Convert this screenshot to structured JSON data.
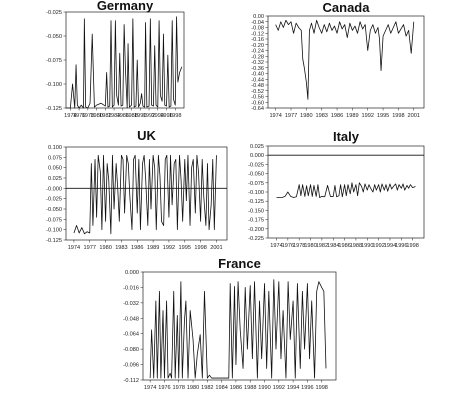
{
  "chart_data": [
    {
      "type": "line",
      "title": "Germany",
      "ylim": [
        -0.125,
        -0.025
      ],
      "yticks": [
        -0.025,
        -0.05,
        -0.075,
        -0.1,
        -0.125
      ],
      "ytick_labels": [
        "-0.025",
        "-0.050",
        "-0.075",
        "-0.100",
        "-0.125"
      ],
      "xlim": [
        1973,
        2000
      ],
      "xticks": [
        1974,
        1976,
        1978,
        1980,
        1982,
        1984,
        1986,
        1988,
        1990,
        1992,
        1994,
        1996,
        1998
      ],
      "xtick_labels": [
        "1974",
        "1976",
        "1978",
        "1980",
        "1982",
        "1984",
        "1986",
        "1988",
        "1990",
        "1992",
        "1994",
        "1996",
        "1998"
      ],
      "hline": null,
      "series": [
        {
          "x": [
            1973.0,
            1974.0,
            1974.5,
            1975.0,
            1975.3,
            1975.6,
            1976.0,
            1976.5,
            1977.0,
            1977.2,
            1977.5,
            1978.0,
            1978.5,
            1979.0,
            1979.5,
            1980.0,
            1981.0,
            1982.0,
            1982.3,
            1982.6,
            1983.0,
            1983.3,
            1983.6,
            1984.0,
            1984.3,
            1984.6,
            1985.0,
            1985.3,
            1985.6,
            1986.0,
            1986.3,
            1986.6,
            1987.0,
            1987.2,
            1987.5,
            1988.0,
            1988.3,
            1988.6,
            1989.0,
            1989.3,
            1989.6,
            1990.0,
            1990.3,
            1990.6,
            1991.0,
            1991.2,
            1991.5,
            1992.0,
            1992.3,
            1992.6,
            1993.0,
            1993.3,
            1993.6,
            1994.0,
            1994.3,
            1994.6,
            1995.0,
            1995.3,
            1995.6,
            1996.0,
            1996.3,
            1996.6,
            1997.0,
            1997.3,
            1997.6,
            1998.0,
            1998.3,
            1998.6,
            1999.0,
            1999.5
          ],
          "values": [
            -0.125,
            -0.125,
            -0.1,
            -0.125,
            -0.08,
            -0.122,
            -0.125,
            -0.122,
            -0.125,
            -0.032,
            -0.124,
            -0.125,
            -0.12,
            -0.048,
            -0.124,
            -0.122,
            -0.12,
            -0.123,
            -0.088,
            -0.124,
            -0.123,
            -0.034,
            -0.124,
            -0.122,
            -0.034,
            -0.112,
            -0.122,
            -0.068,
            -0.123,
            -0.122,
            -0.038,
            -0.085,
            -0.125,
            -0.058,
            -0.124,
            -0.122,
            -0.032,
            -0.124,
            -0.123,
            -0.075,
            -0.124,
            -0.12,
            -0.11,
            -0.123,
            -0.124,
            -0.036,
            -0.124,
            -0.123,
            -0.032,
            -0.122,
            -0.123,
            -0.06,
            -0.122,
            -0.124,
            -0.034,
            -0.112,
            -0.118,
            -0.048,
            -0.122,
            -0.123,
            -0.07,
            -0.124,
            -0.123,
            -0.034,
            -0.116,
            -0.122,
            -0.03,
            -0.098,
            -0.088,
            -0.082
          ]
        }
      ]
    },
    {
      "type": "line",
      "title": "Canada",
      "ylim": [
        -0.64,
        0.0
      ],
      "yticks": [
        0.0,
        -0.04,
        -0.08,
        -0.12,
        -0.16,
        -0.2,
        -0.24,
        -0.28,
        -0.32,
        -0.36,
        -0.4,
        -0.44,
        -0.48,
        -0.52,
        -0.56,
        -0.6,
        -0.64
      ],
      "ytick_labels": [
        "0.00",
        "-0.04",
        "-0.08",
        "-0.12",
        "-0.16",
        "-0.20",
        "-0.24",
        "-0.28",
        "-0.32",
        "-0.36",
        "-0.40",
        "-0.44",
        "-0.48",
        "-0.52",
        "-0.56",
        "-0.60",
        "-0.64"
      ],
      "xlim": [
        1972.5,
        2003
      ],
      "xticks": [
        1974,
        1977,
        1980,
        1983,
        1986,
        1989,
        1992,
        1995,
        1998,
        2001
      ],
      "xtick_labels": [
        "1974",
        "1977",
        "1980",
        "1983",
        "1986",
        "1989",
        "1992",
        "1995",
        "1998",
        "2001"
      ],
      "hline": null,
      "series": [
        {
          "x": [
            1974.0,
            1974.5,
            1975.0,
            1975.5,
            1976.0,
            1976.5,
            1977.0,
            1977.5,
            1978.0,
            1978.5,
            1979.0,
            1979.3,
            1979.6,
            1980.0,
            1980.3,
            1980.6,
            1981.0,
            1981.5,
            1982.0,
            1982.5,
            1983.0,
            1983.5,
            1984.0,
            1984.5,
            1985.0,
            1985.5,
            1986.0,
            1986.5,
            1987.0,
            1987.5,
            1988.0,
            1988.5,
            1989.0,
            1989.5,
            1990.0,
            1990.5,
            1991.0,
            1991.5,
            1992.0,
            1992.5,
            1993.0,
            1993.5,
            1994.0,
            1994.3,
            1994.6,
            1995.0,
            1995.5,
            1996.0,
            1996.5,
            1997.0,
            1997.5,
            1998.0,
            1998.5,
            1999.0,
            1999.5,
            2000.0,
            2000.5,
            2001.0
          ],
          "values": [
            -0.06,
            -0.1,
            -0.04,
            -0.08,
            -0.03,
            -0.06,
            -0.04,
            -0.12,
            -0.05,
            -0.08,
            -0.1,
            -0.3,
            -0.36,
            -0.46,
            -0.58,
            -0.1,
            -0.05,
            -0.12,
            -0.03,
            -0.08,
            -0.12,
            -0.06,
            -0.11,
            -0.05,
            -0.1,
            -0.07,
            -0.12,
            -0.04,
            -0.09,
            -0.06,
            -0.15,
            -0.05,
            -0.1,
            -0.07,
            -0.12,
            -0.04,
            -0.09,
            -0.06,
            -0.24,
            -0.1,
            -0.06,
            -0.12,
            -0.08,
            -0.16,
            -0.38,
            -0.14,
            -0.1,
            -0.06,
            -0.12,
            -0.08,
            -0.04,
            -0.12,
            -0.09,
            -0.06,
            -0.14,
            -0.1,
            -0.26,
            -0.04
          ]
        }
      ]
    },
    {
      "type": "line",
      "title": "UK",
      "ylim": [
        -0.125,
        0.1
      ],
      "yticks": [
        0.1,
        0.075,
        0.05,
        0.025,
        0.0,
        -0.025,
        -0.05,
        -0.075,
        -0.1,
        -0.125
      ],
      "ytick_labels": [
        "0.100",
        "0.075",
        "0.050",
        "0.025",
        "-0.000",
        "-0.025",
        "-0.050",
        "-0.075",
        "-0.100",
        "-0.125"
      ],
      "xlim": [
        1972.5,
        2003
      ],
      "xticks": [
        1974,
        1977,
        1980,
        1983,
        1986,
        1989,
        1992,
        1995,
        1998,
        2001
      ],
      "xtick_labels": [
        "1974",
        "1977",
        "1980",
        "1983",
        "1986",
        "1989",
        "1992",
        "1995",
        "1998",
        "2001"
      ],
      "hline": 0.0,
      "series": [
        {
          "x": [
            1974.0,
            1974.5,
            1975.0,
            1975.5,
            1976.0,
            1976.5,
            1977.0,
            1977.3,
            1977.6,
            1978.0,
            1978.3,
            1978.6,
            1979.0,
            1979.3,
            1979.6,
            1980.0,
            1980.3,
            1980.6,
            1981.0,
            1981.3,
            1981.6,
            1982.0,
            1982.3,
            1982.6,
            1983.0,
            1983.3,
            1983.6,
            1984.0,
            1984.3,
            1984.6,
            1985.0,
            1985.3,
            1985.6,
            1986.0,
            1986.3,
            1986.6,
            1987.0,
            1987.3,
            1987.6,
            1988.0,
            1988.3,
            1988.6,
            1989.0,
            1989.3,
            1989.6,
            1990.0,
            1990.3,
            1990.6,
            1991.0,
            1991.3,
            1991.6,
            1992.0,
            1992.3,
            1992.6,
            1993.0,
            1993.3,
            1993.6,
            1994.0,
            1994.3,
            1994.6,
            1995.0,
            1995.3,
            1995.6,
            1996.0,
            1996.3,
            1996.6,
            1997.0,
            1997.3,
            1997.6,
            1998.0,
            1998.3,
            1998.6,
            1999.0,
            1999.3,
            1999.6,
            2000.0,
            2000.3,
            2000.6,
            2001.0
          ],
          "values": [
            -0.108,
            -0.09,
            -0.108,
            -0.095,
            -0.11,
            -0.105,
            -0.108,
            0.06,
            -0.09,
            0.07,
            -0.07,
            0.08,
            0.04,
            -0.1,
            0.08,
            -0.08,
            0.06,
            0.02,
            -0.11,
            0.08,
            -0.05,
            0.06,
            0.0,
            -0.08,
            0.08,
            0.07,
            -0.06,
            0.08,
            0.06,
            -0.02,
            -0.1,
            0.07,
            0.08,
            -0.06,
            0.07,
            -0.1,
            0.06,
            0.08,
            0.02,
            -0.09,
            0.07,
            -0.05,
            0.08,
            0.05,
            -0.1,
            0.08,
            0.03,
            -0.08,
            -0.09,
            0.07,
            0.08,
            -0.07,
            0.08,
            -0.04,
            0.06,
            0.07,
            -0.1,
            0.08,
            0.02,
            -0.08,
            0.07,
            -0.03,
            0.08,
            -0.09,
            0.05,
            0.07,
            -0.06,
            0.08,
            0.04,
            -0.08,
            0.07,
            -0.02,
            -0.09,
            0.06,
            -0.1,
            -0.04,
            0.07,
            -0.1,
            0.08
          ]
        }
      ]
    },
    {
      "type": "line",
      "title": "Italy",
      "ylim": [
        -0.225,
        0.025
      ],
      "yticks": [
        0.025,
        0.0,
        -0.025,
        -0.05,
        -0.075,
        -0.1,
        -0.125,
        -0.15,
        -0.175,
        -0.2,
        -0.225
      ],
      "ytick_labels": [
        "0.025",
        "0.000",
        "-0.025",
        "-0.050",
        "-0.075",
        "-0.100",
        "-0.125",
        "-0.150",
        "-0.175",
        "-0.200",
        "-0.225"
      ],
      "xlim": [
        1972.5,
        2000
      ],
      "xticks": [
        1974,
        1976,
        1978,
        1980,
        1982,
        1984,
        1986,
        1988,
        1990,
        1992,
        1994,
        1996,
        1998
      ],
      "xtick_labels": [
        "1974",
        "1976",
        "1978",
        "1980",
        "1982",
        "1984",
        "1986",
        "1988",
        "1990",
        "1992",
        "1994",
        "1996",
        "1998"
      ],
      "hline": 0.0,
      "series": [
        {
          "x": [
            1974.0,
            1975.0,
            1975.5,
            1976.0,
            1976.5,
            1977.0,
            1977.5,
            1978.0,
            1978.3,
            1978.6,
            1979.0,
            1979.3,
            1979.6,
            1980.0,
            1980.3,
            1980.6,
            1981.0,
            1981.3,
            1981.6,
            1982.0,
            1982.5,
            1983.0,
            1983.5,
            1984.0,
            1984.3,
            1984.6,
            1985.0,
            1985.3,
            1985.6,
            1986.0,
            1986.3,
            1986.6,
            1987.0,
            1987.3,
            1987.6,
            1988.0,
            1988.3,
            1988.6,
            1989.0,
            1989.3,
            1989.6,
            1990.0,
            1990.3,
            1990.6,
            1991.0,
            1991.3,
            1991.6,
            1992.0,
            1992.3,
            1992.6,
            1993.0,
            1993.3,
            1993.6,
            1994.0,
            1994.3,
            1994.6,
            1995.0,
            1995.3,
            1995.6,
            1996.0,
            1996.3,
            1996.6,
            1997.0,
            1997.3,
            1997.6,
            1998.0,
            1998.5
          ],
          "values": [
            -0.115,
            -0.115,
            -0.112,
            -0.1,
            -0.112,
            -0.115,
            -0.113,
            -0.08,
            -0.11,
            -0.08,
            -0.112,
            -0.083,
            -0.11,
            -0.08,
            -0.112,
            -0.082,
            -0.112,
            -0.08,
            -0.115,
            -0.112,
            -0.113,
            -0.082,
            -0.112,
            -0.112,
            -0.082,
            -0.113,
            -0.11,
            -0.08,
            -0.113,
            -0.08,
            -0.11,
            -0.08,
            -0.105,
            -0.075,
            -0.1,
            -0.08,
            -0.11,
            -0.075,
            -0.085,
            -0.1,
            -0.078,
            -0.095,
            -0.08,
            -0.09,
            -0.1,
            -0.08,
            -0.095,
            -0.08,
            -0.1,
            -0.078,
            -0.095,
            -0.08,
            -0.098,
            -0.078,
            -0.092,
            -0.085,
            -0.078,
            -0.095,
            -0.08,
            -0.09,
            -0.078,
            -0.095,
            -0.082,
            -0.09,
            -0.08,
            -0.088,
            -0.085
          ]
        }
      ]
    },
    {
      "type": "line",
      "title": "France",
      "ylim": [
        -0.112,
        0.0
      ],
      "yticks": [
        0.0,
        -0.016,
        -0.032,
        -0.048,
        -0.064,
        -0.08,
        -0.096,
        -0.112
      ],
      "ytick_labels": [
        "0.000",
        "-0.016",
        "-0.032",
        "-0.048",
        "-0.064",
        "-0.080",
        "-0.096",
        "-0.112"
      ],
      "xlim": [
        1973,
        2000
      ],
      "xticks": [
        1974,
        1976,
        1978,
        1980,
        1982,
        1984,
        1986,
        1988,
        1990,
        1992,
        1994,
        1996,
        1998
      ],
      "xtick_labels": [
        "1974",
        "1976",
        "1978",
        "1980",
        "1982",
        "1984",
        "1986",
        "1988",
        "1990",
        "1992",
        "1994",
        "1996",
        "1998"
      ],
      "hline": null,
      "series": [
        {
          "x": [
            1974.0,
            1974.2,
            1974.5,
            1974.8,
            1975.0,
            1975.3,
            1975.5,
            1975.8,
            1976.0,
            1976.3,
            1976.5,
            1976.8,
            1977.0,
            1977.3,
            1977.5,
            1977.8,
            1978.0,
            1978.3,
            1978.5,
            1978.8,
            1979.0,
            1979.3,
            1979.6,
            1980.0,
            1980.3,
            1980.6,
            1981.0,
            1981.3,
            1981.6,
            1982.0,
            1982.3,
            1982.6,
            1983.0,
            1983.5,
            1984.0,
            1984.5,
            1985.0,
            1985.2,
            1985.5,
            1985.8,
            1986.0,
            1986.3,
            1986.6,
            1987.0,
            1987.3,
            1987.6,
            1988.0,
            1988.3,
            1988.6,
            1989.0,
            1989.3,
            1989.6,
            1990.0,
            1990.3,
            1990.6,
            1991.0,
            1991.3,
            1991.6,
            1992.0,
            1992.3,
            1992.6,
            1993.0,
            1993.3,
            1993.6,
            1994.0,
            1994.3,
            1994.6,
            1995.0,
            1995.3,
            1995.6,
            1996.0,
            1996.3,
            1996.6,
            1997.0,
            1997.3,
            1997.6,
            1998.0,
            1998.3,
            1998.6
          ],
          "values": [
            -0.11,
            -0.06,
            -0.11,
            -0.03,
            -0.11,
            -0.02,
            -0.11,
            -0.04,
            -0.11,
            -0.03,
            -0.11,
            -0.105,
            -0.11,
            -0.02,
            -0.11,
            -0.045,
            -0.11,
            -0.01,
            -0.11,
            -0.05,
            -0.03,
            -0.11,
            -0.04,
            -0.07,
            -0.11,
            -0.085,
            -0.065,
            -0.11,
            -0.02,
            -0.11,
            -0.107,
            -0.11,
            -0.11,
            -0.11,
            -0.11,
            -0.11,
            -0.11,
            -0.012,
            -0.11,
            -0.015,
            -0.096,
            -0.01,
            -0.06,
            -0.1,
            -0.016,
            -0.08,
            -0.014,
            -0.09,
            -0.01,
            -0.11,
            -0.03,
            -0.09,
            -0.012,
            -0.1,
            -0.02,
            -0.11,
            -0.008,
            -0.08,
            -0.01,
            -0.09,
            -0.04,
            -0.11,
            -0.01,
            -0.07,
            -0.03,
            -0.11,
            -0.012,
            -0.1,
            -0.02,
            -0.08,
            -0.012,
            -0.09,
            -0.03,
            -0.11,
            -0.02,
            -0.01,
            -0.016,
            -0.02,
            -0.1
          ]
        }
      ]
    }
  ]
}
